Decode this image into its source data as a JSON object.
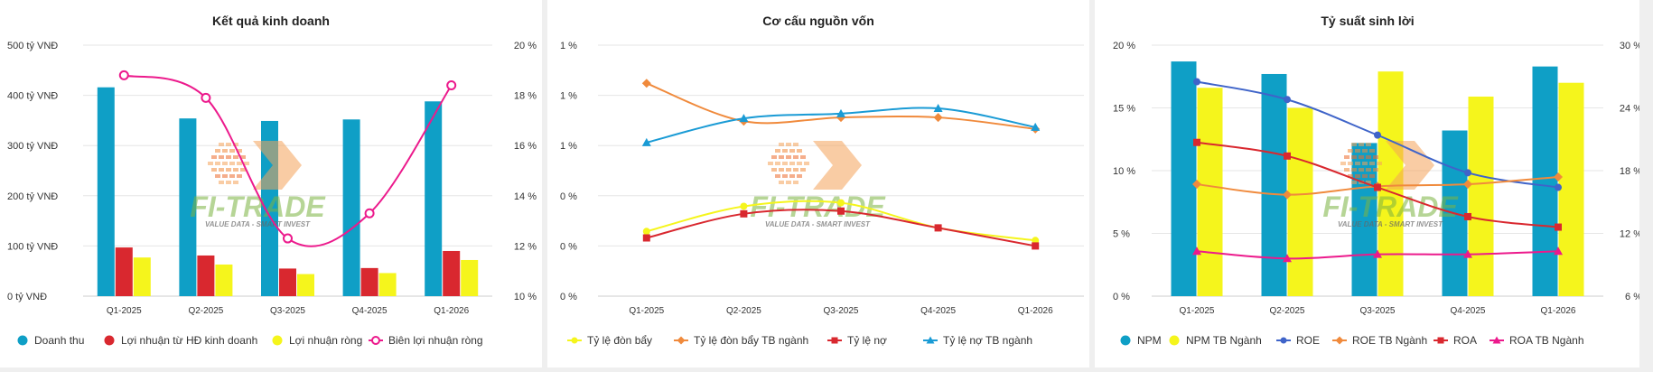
{
  "watermark": {
    "brand": "FI-TRADE",
    "tagline": "VALUE DATA - SMART INVEST"
  },
  "colors": {
    "blue": "#0f9fc6",
    "red": "#d9282f",
    "yellow": "#f5f51c",
    "magenta": "#ec1a8c",
    "orange": "#f08a3c",
    "cyan": "#1a9bd5",
    "navy": "#3f64c9",
    "salmon": "#f26e56"
  },
  "chart_data": [
    {
      "type": "bar",
      "title": "Kết quả kinh doanh",
      "categories": [
        "Q1-2025",
        "Q2-2025",
        "Q3-2025",
        "Q4-2025",
        "Q1-2026"
      ],
      "y_left": {
        "ticks": [
          "0 tỷ VNĐ",
          "100 tỷ VNĐ",
          "200 tỷ VNĐ",
          "300 tỷ VNĐ",
          "400 tỷ VNĐ",
          "500 tỷ VNĐ"
        ],
        "ylim": [
          0,
          500
        ]
      },
      "y_right": {
        "ticks": [
          "10 %",
          "12 %",
          "14 %",
          "16 %",
          "18 %",
          "20 %"
        ],
        "ylim": [
          10,
          20
        ]
      },
      "series": [
        {
          "name": "Doanh thu",
          "kind": "bar",
          "axis": "left",
          "color": "#0f9fc6",
          "values": [
            416,
            354,
            349,
            352,
            388
          ]
        },
        {
          "name": "Lợi nhuận từ HĐ kinh doanh",
          "kind": "bar",
          "axis": "left",
          "color": "#d9282f",
          "values": [
            97,
            81,
            55,
            56,
            90
          ]
        },
        {
          "name": "Lợi nhuận ròng",
          "kind": "bar",
          "axis": "left",
          "color": "#f5f51c",
          "values": [
            77,
            63,
            44,
            46,
            72
          ]
        },
        {
          "name": "Biên lợi nhuận ròng",
          "kind": "line",
          "axis": "right",
          "color": "#ec1a8c",
          "marker": "hollow-circle",
          "values": [
            18.8,
            17.9,
            12.3,
            13.3,
            18.4
          ]
        }
      ]
    },
    {
      "type": "line",
      "title": "Cơ cấu nguồn vốn",
      "categories": [
        "Q1-2025",
        "Q2-2025",
        "Q3-2025",
        "Q4-2025",
        "Q1-2026"
      ],
      "y_left": {
        "ticks": [
          "0 %",
          "0 %",
          "0 %",
          "1 %",
          "1 %",
          "1 %"
        ],
        "ylim": [
          0,
          1
        ]
      },
      "series": [
        {
          "name": "Tỷ lệ đòn bẩy",
          "color": "#f5f51c",
          "marker": "circle",
          "values": [
            0.258,
            0.358,
            0.372,
            0.272,
            0.222
          ]
        },
        {
          "name": "Tỷ lệ đòn bẩy TB ngành",
          "color": "#f08a3c",
          "marker": "diamond",
          "values": [
            0.848,
            0.697,
            0.712,
            0.712,
            0.666
          ]
        },
        {
          "name": "Tỷ lệ nợ",
          "color": "#d9282f",
          "marker": "square",
          "values": [
            0.232,
            0.328,
            0.339,
            0.272,
            0.2
          ]
        },
        {
          "name": "Tỷ lệ nợ TB ngành",
          "color": "#1a9bd5",
          "marker": "triangle",
          "values": [
            0.612,
            0.708,
            0.727,
            0.748,
            0.673
          ]
        }
      ]
    },
    {
      "type": "bar",
      "title": "Tỷ suất sinh lời",
      "categories": [
        "Q1-2025",
        "Q2-2025",
        "Q3-2025",
        "Q4-2025",
        "Q1-2026"
      ],
      "y_left": {
        "ticks": [
          "0 %",
          "5 %",
          "10 %",
          "15 %",
          "20 %"
        ],
        "ylim": [
          0,
          20
        ]
      },
      "y_right": {
        "ticks": [
          "6 %",
          "12 %",
          "18 %",
          "24 %",
          "30 %"
        ],
        "ylim": [
          6,
          30
        ]
      },
      "series": [
        {
          "name": "NPM",
          "kind": "bar",
          "axis": "left",
          "color": "#0f9fc6",
          "values": [
            18.7,
            17.7,
            12.2,
            13.2,
            18.3
          ]
        },
        {
          "name": "NPM TB Ngành",
          "kind": "bar",
          "axis": "left",
          "color": "#f5f51c",
          "values": [
            16.6,
            15.0,
            17.9,
            15.9,
            17.0
          ]
        },
        {
          "name": "ROE",
          "kind": "line",
          "axis": "right",
          "color": "#3f64c9",
          "marker": "circle",
          "values": [
            26.5,
            24.8,
            21.4,
            17.8,
            16.4
          ]
        },
        {
          "name": "ROE TB Ngành",
          "kind": "line",
          "axis": "right",
          "color": "#f08a3c",
          "marker": "diamond",
          "values": [
            16.7,
            15.7,
            16.5,
            16.7,
            17.4
          ]
        },
        {
          "name": "ROA",
          "kind": "line",
          "axis": "right",
          "color": "#d9282f",
          "marker": "square",
          "values": [
            20.7,
            19.4,
            16.4,
            13.6,
            12.6
          ]
        },
        {
          "name": "ROA TB Ngành",
          "kind": "line",
          "axis": "right",
          "color": "#ec1a8c",
          "marker": "triangle",
          "values": [
            10.3,
            9.6,
            10.0,
            10.0,
            10.3
          ]
        }
      ]
    }
  ]
}
